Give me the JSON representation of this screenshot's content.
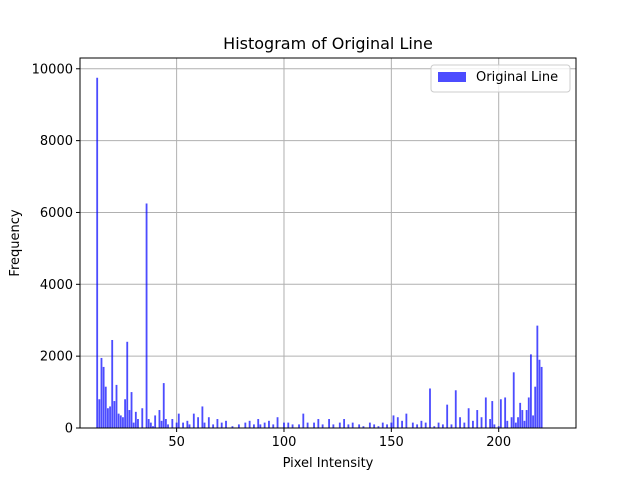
{
  "chart_data": {
    "type": "bar",
    "title": "Histogram of Original Line",
    "xlabel": "Pixel Intensity",
    "ylabel": "Frequency",
    "xlim": [
      5,
      236
    ],
    "ylim": [
      0,
      10300
    ],
    "xticks": [
      50,
      100,
      150,
      200
    ],
    "yticks": [
      0,
      2000,
      4000,
      6000,
      8000,
      10000
    ],
    "grid": true,
    "legend_position": "top-right",
    "series": [
      {
        "name": "Original Line",
        "color": "#0000ff",
        "opacity": 0.7,
        "bin_width": 0.85,
        "x": [
          13,
          14,
          15,
          16,
          17,
          18,
          19,
          20,
          21,
          22,
          23,
          24,
          25,
          26,
          27,
          28,
          29,
          30,
          31,
          32,
          34,
          36,
          37,
          38,
          39,
          40,
          42,
          43,
          44,
          45,
          46,
          48,
          50,
          51,
          53,
          55,
          56,
          58,
          60,
          62,
          63,
          65,
          67,
          69,
          71,
          73,
          76,
          79,
          82,
          84,
          86,
          88,
          89,
          91,
          93,
          95,
          97,
          100,
          102,
          104,
          107,
          109,
          111,
          114,
          116,
          118,
          121,
          123,
          126,
          128,
          130,
          132,
          135,
          137,
          140,
          142,
          144,
          146,
          148,
          150,
          151,
          153,
          155,
          157,
          160,
          162,
          164,
          166,
          168,
          170,
          172,
          174,
          176,
          178,
          180,
          182,
          184,
          186,
          188,
          190,
          192,
          194,
          196,
          197,
          198,
          200,
          201,
          203,
          204,
          206,
          207,
          208,
          209,
          210,
          211,
          212,
          213,
          214,
          215,
          216,
          217,
          218,
          219,
          220
        ],
        "values": [
          9750,
          800,
          1950,
          1700,
          1150,
          550,
          600,
          2450,
          750,
          1200,
          400,
          350,
          300,
          800,
          2400,
          500,
          1000,
          150,
          450,
          250,
          550,
          6250,
          250,
          150,
          50,
          350,
          500,
          200,
          1250,
          250,
          100,
          250,
          150,
          400,
          150,
          200,
          100,
          400,
          300,
          600,
          150,
          300,
          100,
          250,
          150,
          200,
          50,
          100,
          150,
          200,
          100,
          250,
          100,
          150,
          200,
          100,
          300,
          150,
          150,
          100,
          100,
          400,
          150,
          150,
          250,
          100,
          250,
          100,
          150,
          250,
          100,
          150,
          100,
          50,
          150,
          100,
          50,
          150,
          100,
          150,
          350,
          300,
          200,
          400,
          150,
          100,
          200,
          150,
          1100,
          50,
          150,
          100,
          650,
          100,
          1050,
          300,
          150,
          550,
          200,
          500,
          300,
          850,
          250,
          750,
          100,
          50,
          800,
          850,
          200,
          300,
          1550,
          150,
          300,
          700,
          500,
          200,
          500,
          850,
          2050,
          350,
          1150,
          2850,
          1900,
          1700
        ]
      }
    ]
  }
}
